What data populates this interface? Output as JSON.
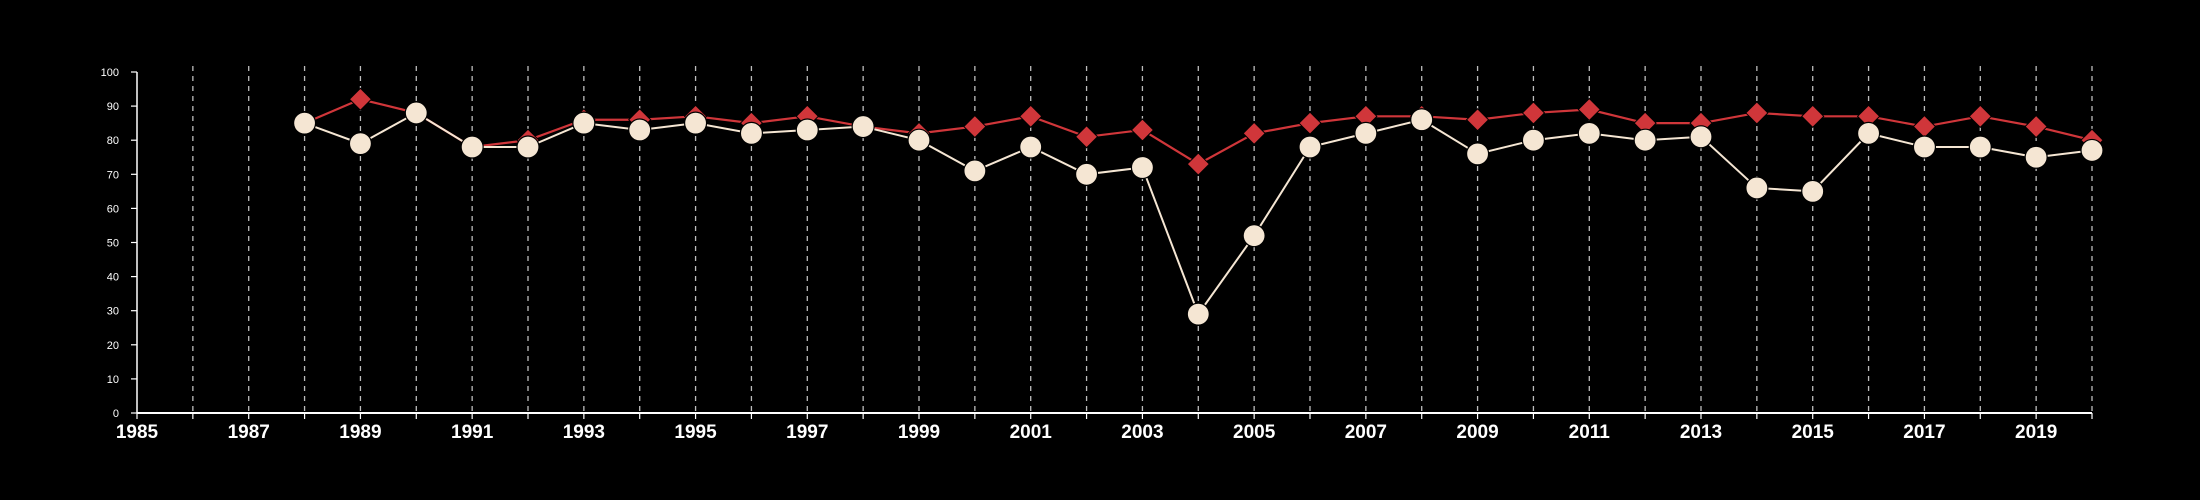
{
  "chart_data": {
    "type": "line",
    "title": "",
    "xlabel": "",
    "ylabel": "",
    "xlim": [
      1985,
      2020
    ],
    "ylim": [
      0,
      100
    ],
    "x_tick_labels": [
      "1985",
      "1987",
      "1989",
      "1991",
      "1993",
      "1995",
      "1997",
      "1999",
      "2001",
      "2003",
      "2005",
      "2007",
      "2009",
      "2011",
      "2013",
      "2015",
      "2017",
      "2019"
    ],
    "y_tick_labels": [
      "0",
      "10",
      "20",
      "30",
      "40",
      "50",
      "60",
      "70",
      "80",
      "90",
      "100"
    ],
    "grid": "vertical dashed lines at each year",
    "legend": "none",
    "x": [
      1988,
      1989,
      1990,
      1991,
      1992,
      1993,
      1994,
      1995,
      1996,
      1997,
      1998,
      1999,
      2000,
      2001,
      2002,
      2003,
      2004,
      2005,
      2006,
      2007,
      2008,
      2009,
      2010,
      2011,
      2012,
      2013,
      2014,
      2015,
      2016,
      2017,
      2018,
      2019,
      2020
    ],
    "series": [
      {
        "marker": "diamond",
        "color": "#d0363a",
        "values": [
          85,
          92,
          88,
          78,
          80,
          86,
          86,
          87,
          85,
          87,
          84,
          82,
          84,
          87,
          81,
          83,
          73,
          82,
          85,
          87,
          87,
          86,
          88,
          89,
          85,
          85,
          88,
          87,
          87,
          84,
          87,
          84,
          80
        ]
      },
      {
        "marker": "circle",
        "color": "#f5e6d3",
        "values": [
          85,
          79,
          88,
          78,
          78,
          85,
          83,
          85,
          82,
          83,
          84,
          80,
          71,
          78,
          70,
          72,
          29,
          52,
          78,
          82,
          86,
          76,
          80,
          82,
          80,
          81,
          66,
          65,
          82,
          78,
          78,
          75,
          77
        ]
      }
    ]
  }
}
